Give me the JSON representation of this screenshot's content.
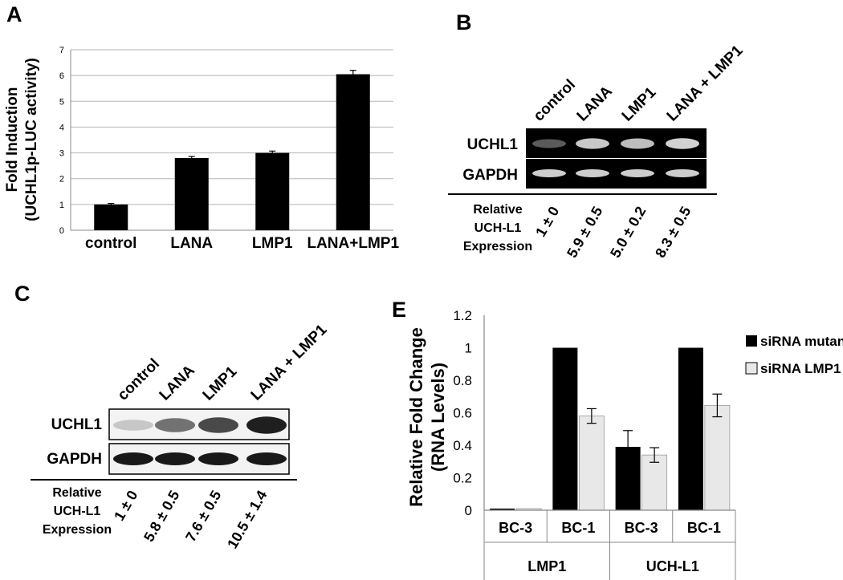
{
  "panels": {
    "A": "A",
    "B": "B",
    "C": "C",
    "E": "E"
  },
  "chart_data": [
    {
      "panel": "A",
      "type": "bar",
      "ylabel_line1": "Fold Induction",
      "ylabel_line2": "(UCHL1p-LUC activity)",
      "categories": [
        "control",
        "LANA",
        "LMP1",
        "LANA+LMP1"
      ],
      "values": [
        1.0,
        2.8,
        3.0,
        6.05
      ],
      "errors": [
        0.04,
        0.06,
        0.07,
        0.15
      ],
      "ylim": [
        0,
        7
      ],
      "yticks": [
        "0",
        "1",
        "2",
        "3",
        "4",
        "5",
        "6",
        "7"
      ],
      "grid": true,
      "bar_color": "#000000"
    },
    {
      "panel": "E",
      "type": "bar",
      "ylabel_line1": "Relative Fold Change",
      "ylabel_line2": "(RNA Levels)",
      "categories": [
        "BC-3",
        "BC-1",
        "BC-3",
        "BC-1"
      ],
      "groups": [
        "LMP1",
        "UCH-L1"
      ],
      "series": [
        {
          "name": "siRNA mutant",
          "values": [
            0.01,
            1.0,
            0.39,
            1.0
          ],
          "errors": [
            0,
            0,
            0.1,
            0
          ],
          "color": "#000000"
        },
        {
          "name": "siRNA LMP1",
          "values": [
            0.01,
            0.58,
            0.34,
            0.645
          ],
          "errors": [
            0,
            0.045,
            0.045,
            0.07
          ],
          "color": "#e8e8e8"
        }
      ],
      "ylim": [
        0,
        1.2
      ],
      "yticks": [
        "0",
        "0.2",
        "0.4",
        "0.6",
        "0.8",
        "1",
        "1.2"
      ],
      "legend_position": "top-right",
      "grid": false
    }
  ],
  "blot_B": {
    "lanes": [
      "control",
      "LANA",
      "LMP1",
      "LANA + LMP1"
    ],
    "rows": [
      "UCHL1",
      "GAPDH"
    ],
    "uchl1_intensity": [
      0.25,
      0.8,
      0.75,
      0.85
    ],
    "quant_label": [
      "Relative",
      "UCH-L1",
      "Expression"
    ],
    "quant_values": [
      [
        "1",
        "±",
        "0"
      ],
      [
        "5.9",
        "±",
        "0.5"
      ],
      [
        "5.0",
        "±",
        "0.2"
      ],
      [
        "8.3",
        "±",
        "0.5"
      ]
    ]
  },
  "blot_C": {
    "lanes": [
      "control",
      "LANA",
      "LMP1",
      "LANA + LMP1"
    ],
    "rows": [
      "UCHL1",
      "GAPDH"
    ],
    "uchl1_intensity": [
      0.15,
      0.55,
      0.75,
      0.95
    ],
    "quant_label": [
      "Relative",
      "UCH-L1",
      "Expression"
    ],
    "quant_values": [
      [
        "1",
        "±",
        "0"
      ],
      [
        "5.8",
        "±",
        "0.5"
      ],
      [
        "7.6",
        "±",
        "0.5"
      ],
      [
        "10.5",
        "±",
        "1.4"
      ]
    ]
  }
}
